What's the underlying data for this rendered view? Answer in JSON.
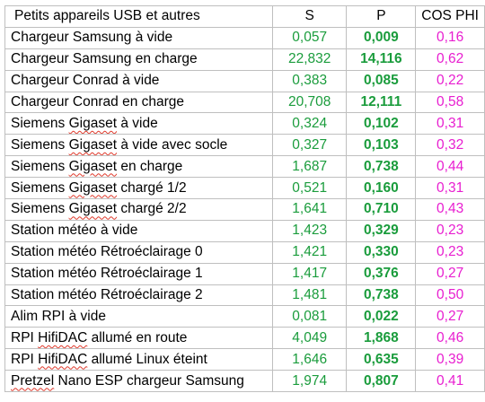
{
  "headers": {
    "label": "Petits appareils USB et autres",
    "s": "S",
    "p": "P",
    "cos": "COS PHI"
  },
  "rows": [
    {
      "pre": "Chargeur Samsung à vide",
      "mark": "",
      "post": "",
      "s": "0,057",
      "p": "0,009",
      "cos": "0,16"
    },
    {
      "pre": "Chargeur Samsung en charge",
      "mark": "",
      "post": "",
      "s": "22,832",
      "p": "14,116",
      "cos": "0,62"
    },
    {
      "pre": "Chargeur Conrad à vide",
      "mark": "",
      "post": "",
      "s": "0,383",
      "p": "0,085",
      "cos": "0,22"
    },
    {
      "pre": "Chargeur Conrad en charge",
      "mark": "",
      "post": "",
      "s": "20,708",
      "p": "12,111",
      "cos": "0,58"
    },
    {
      "pre": "Siemens ",
      "mark": "Gigaset",
      "post": " à vide",
      "s": "0,324",
      "p": "0,102",
      "cos": "0,31"
    },
    {
      "pre": "Siemens ",
      "mark": "Gigaset",
      "post": " à vide avec socle",
      "s": "0,327",
      "p": "0,103",
      "cos": "0,32"
    },
    {
      "pre": "Siemens ",
      "mark": "Gigaset",
      "post": " en charge",
      "s": "1,687",
      "p": "0,738",
      "cos": "0,44"
    },
    {
      "pre": "Siemens ",
      "mark": "Gigaset",
      "post": " chargé 1/2",
      "s": "0,521",
      "p": "0,160",
      "cos": "0,31"
    },
    {
      "pre": "Siemens ",
      "mark": "Gigaset",
      "post": " chargé 2/2",
      "s": "1,641",
      "p": "0,710",
      "cos": "0,43"
    },
    {
      "pre": "Station météo à vide",
      "mark": "",
      "post": "",
      "s": "1,423",
      "p": "0,329",
      "cos": "0,23"
    },
    {
      "pre": "Station météo Rétroéclairage 0",
      "mark": "",
      "post": "",
      "s": "1,421",
      "p": "0,330",
      "cos": "0,23"
    },
    {
      "pre": "Station météo Rétroéclairage 1",
      "mark": "",
      "post": "",
      "s": "1,417",
      "p": "0,376",
      "cos": "0,27"
    },
    {
      "pre": "Station météo Rétroéclairage 2",
      "mark": "",
      "post": "",
      "s": "1,481",
      "p": "0,738",
      "cos": "0,50"
    },
    {
      "pre": "Alim RPI à vide",
      "mark": "",
      "post": "",
      "s": "0,081",
      "p": "0,022",
      "cos": "0,27"
    },
    {
      "pre": "RPI ",
      "mark": "HifiDAC",
      "post": " allumé en route",
      "s": "4,049",
      "p": "1,868",
      "cos": "0,46"
    },
    {
      "pre": "RPI ",
      "mark": "HifiDAC",
      "post": " allumé Linux éteint",
      "s": "1,646",
      "p": "0,635",
      "cos": "0,39"
    },
    {
      "pre": "",
      "mark": "Pretzel",
      "post": " Nano ESP chargeur Samsung",
      "s": "1,974",
      "p": "0,807",
      "cos": "0,41"
    }
  ]
}
